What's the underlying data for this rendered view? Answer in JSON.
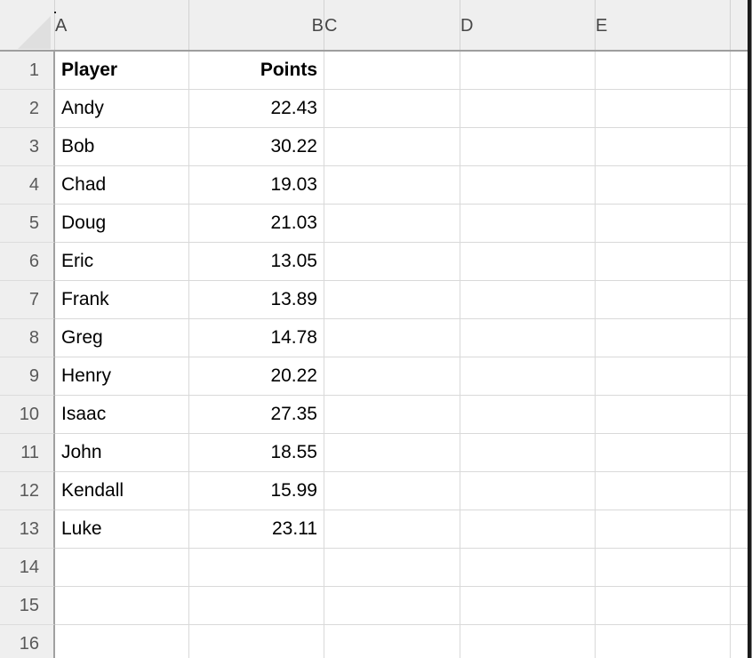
{
  "sheet": {
    "column_headers": [
      "A",
      "B",
      "C",
      "D",
      "E",
      ""
    ],
    "row_numbers": [
      "1",
      "2",
      "3",
      "4",
      "5",
      "6",
      "7",
      "8",
      "9",
      "10",
      "11",
      "12",
      "13",
      "14",
      "15",
      "16"
    ],
    "header_row": {
      "player": "Player",
      "points": "Points"
    },
    "records": [
      {
        "player": "Andy",
        "points": "22.43"
      },
      {
        "player": "Bob",
        "points": "30.22"
      },
      {
        "player": "Chad",
        "points": "19.03"
      },
      {
        "player": "Doug",
        "points": "21.03"
      },
      {
        "player": "Eric",
        "points": "13.05"
      },
      {
        "player": "Frank",
        "points": "13.89"
      },
      {
        "player": "Greg",
        "points": "14.78"
      },
      {
        "player": "Henry",
        "points": "20.22"
      },
      {
        "player": "Isaac",
        "points": "27.35"
      },
      {
        "player": "John",
        "points": "18.55"
      },
      {
        "player": "Kendall",
        "points": "15.99"
      },
      {
        "player": "Luke",
        "points": "23.11"
      }
    ],
    "colors": {
      "header_band_bg": "#efefef",
      "gridline": "#d9d9d9",
      "header_separator": "#9e9e9e",
      "column_letter_text": "#474747",
      "row_number_text": "#595959",
      "cell_text": "#000000",
      "select_all_triangle": "#dfdfdf",
      "right_edge_strip": "#1a1a1a"
    }
  }
}
